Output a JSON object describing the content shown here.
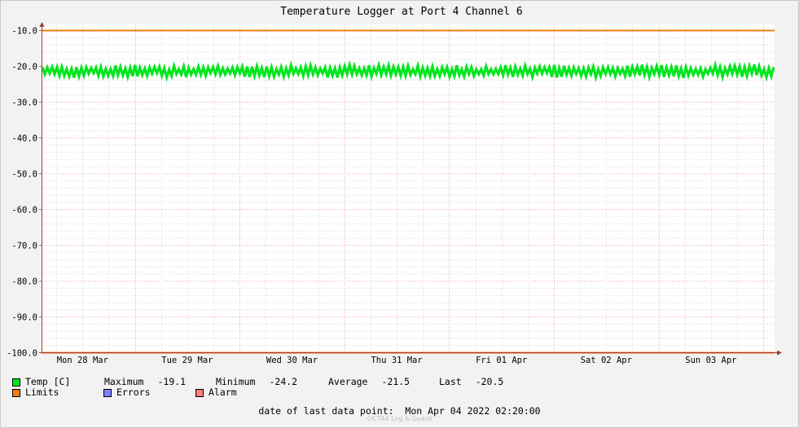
{
  "chart_data": {
    "type": "line",
    "title": "Temperature Logger at Port 4 Channel 6",
    "y_ticks": [
      "-10.0",
      "-20.0",
      "-30.0",
      "-40.0",
      "-50.0",
      "-60.0",
      "-70.0",
      "-80.0",
      "-90.0",
      "-100.0"
    ],
    "x_ticks": [
      "Mon 28 Mar",
      "Tue 29 Mar",
      "Wed 30 Mar",
      "Thu 31 Mar",
      "Fri 01 Apr",
      "Sat 02 Apr",
      "Sun 03 Apr"
    ],
    "ylim": [
      -100,
      -10
    ],
    "grid": true,
    "series": [
      {
        "name": "Temp [C]",
        "color": "#00e61e",
        "mean": -21.5,
        "min": -24.2,
        "max": -19.1,
        "last": -20.5
      },
      {
        "name": "Limits",
        "color": "#f07d0f",
        "values": [
          -10,
          -100
        ]
      }
    ]
  },
  "legend": {
    "temp_label": "Temp [C]",
    "max_label": "Maximum",
    "max_value": "-19.1",
    "min_label": "Minimum",
    "min_value": "-24.2",
    "avg_label": "Average",
    "avg_value": "-21.5",
    "last_label": "Last",
    "last_value": "-20.5",
    "limits_label": "Limits",
    "errors_label": "Errors",
    "alarm_label": "Alarm"
  },
  "colors": {
    "temp": "#00e61e",
    "limits": "#f07d0f",
    "errors": "#7f7fff",
    "alarm": "#ff7f7f",
    "grid_major": "#f2a3a3",
    "grid_minor": "#d9d9d9"
  },
  "footer": {
    "last_point_label": "date of last data point:",
    "last_point_value": "Mon Apr 04 2022 02:20:00",
    "watermark": "OCTA4 Log & Guard"
  }
}
